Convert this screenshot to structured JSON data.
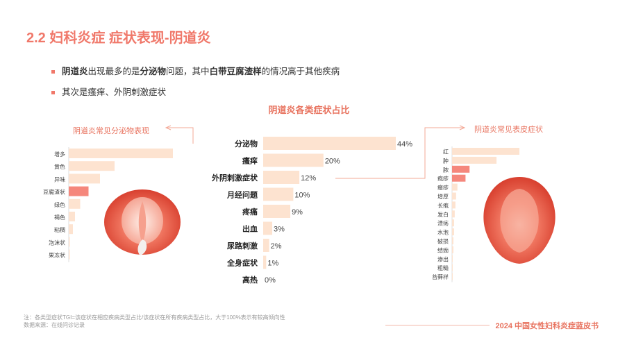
{
  "header": {
    "title": "2.2 妇科炎症 症状表现-阴道炎"
  },
  "bullets": {
    "line1": {
      "b1": "阴道炎",
      "t1": "出现最多的是",
      "b2": "分泌物",
      "t2": "问题，其中",
      "b3": "白带豆腐渣样",
      "t3": "的情况高于其他疾病"
    },
    "line2": "其次是瘙痒、外阴刺激症状"
  },
  "side_titles": {
    "left": "阴道炎常见分泌物表现",
    "right": "阴道炎常见表皮症状"
  },
  "footer": {
    "note": "注：各类型症状TGI=该症状在相应疾病类型占比/该症状在所有疾病类型占比，大于100%表示有较高倾向性",
    "source": "数据来源：在线问诊记录",
    "brand": "2024 中国女性妇科炎症蓝皮书"
  },
  "colors": {
    "accent": "#f0786a",
    "bar": "#fde3d0",
    "highlight": "#f5877c"
  },
  "chart_data": [
    {
      "type": "bar",
      "orientation": "horizontal",
      "title": "阴道炎各类症状占比",
      "categories": [
        "分泌物",
        "瘙痒",
        "外阴刺激症状",
        "月经问题",
        "疼痛",
        "出血",
        "尿路刺激",
        "全身症状",
        "高热"
      ],
      "values": [
        44,
        20,
        12,
        10,
        9,
        3,
        2,
        1,
        0
      ],
      "labels": [
        "44%",
        "20%",
        "12%",
        "10%",
        "9%",
        "3%",
        "2%",
        "1%",
        "0%"
      ],
      "unit": "%",
      "xlim": [
        0,
        44
      ]
    },
    {
      "type": "bar",
      "orientation": "horizontal",
      "title": "阴道炎常见分泌物表现",
      "categories": [
        "增多",
        "黄色",
        "异味",
        "豆腐渣状",
        "绿色",
        "褐色",
        "粘稠",
        "泡沫状",
        "果冻状"
      ],
      "values": [
        100,
        44,
        30,
        19,
        11,
        6,
        4,
        1,
        1
      ],
      "highlight": "豆腐渣状"
    },
    {
      "type": "bar",
      "orientation": "horizontal",
      "title": "阴道炎常见表皮症状",
      "categories": [
        "红",
        "肿",
        "脓",
        "疱疹",
        "瘢疹",
        "增厚",
        "长疱",
        "发白",
        "溃疡",
        "水泡",
        "破损",
        "结痂",
        "渗出",
        "粗糙",
        "苔藓样"
      ],
      "values": [
        100,
        66,
        26,
        20,
        8,
        6,
        5,
        4,
        3,
        3,
        2,
        2,
        1,
        1,
        1
      ],
      "highlight": [
        "脓",
        "疱疹"
      ]
    }
  ]
}
